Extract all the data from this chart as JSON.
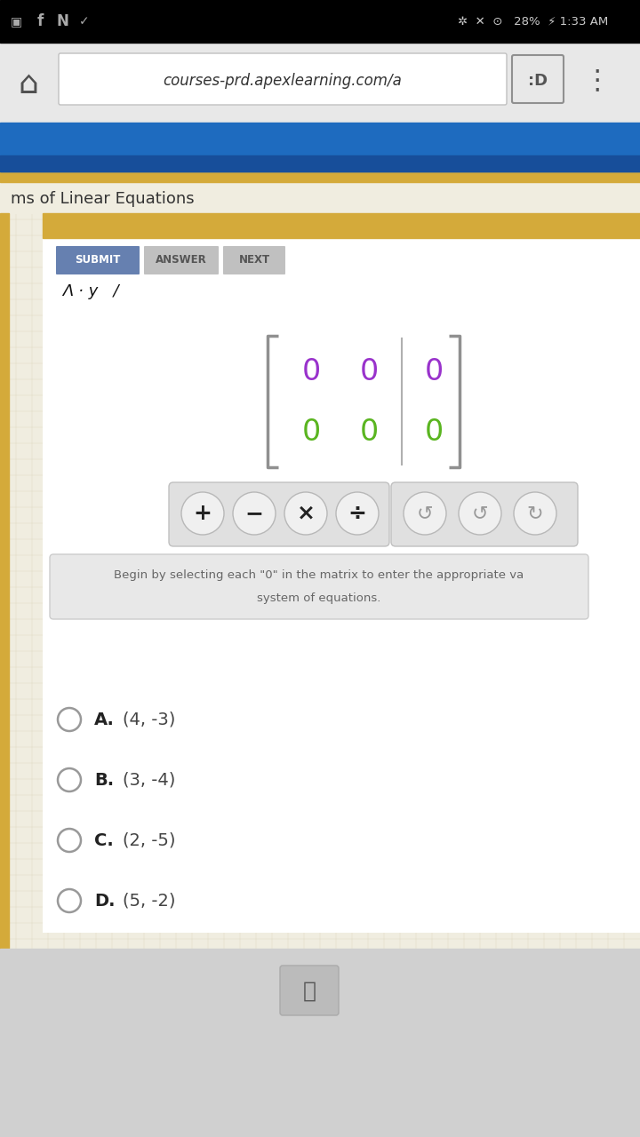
{
  "bg_status_bar": "#000000",
  "bg_browser_bar": "#e8e8e8",
  "bg_blue_header_top": "#1e6bbf",
  "bg_blue_header_bot": "#174e9a",
  "bg_page": "#f0ede0",
  "bg_grid": "#e8e4d0",
  "bg_yellow_bar": "#d4aa3a",
  "bg_content": "#ffffff",
  "left_border_color": "#d4aa3a",
  "matrix_border_color": "#909090",
  "matrix_divider_color": "#b0b0b0",
  "row1_color": "#9932CC",
  "row2_color": "#5ab520",
  "submit_color": "#6680b0",
  "answer_color": "#c0c0c0",
  "next_color": "#c0c0c0",
  "ops_bg": "#e0e0e0",
  "ops_btn_bg": "#f0f0f0",
  "instr_bg": "#e8e8e8",
  "bottom_bar": "#d0d0d0",
  "url_text": "courses-prd.apexlearning.com/a",
  "page_title": "ms of Linear Equations",
  "partial_text": "Λ · y   /",
  "choices": [
    {
      "letter": "A",
      "text": "(4, -3)"
    },
    {
      "letter": "B",
      "text": "(3, -4)"
    },
    {
      "letter": "C",
      "text": "(2, -5)"
    },
    {
      "letter": "D",
      "text": "(5, -2)"
    }
  ]
}
